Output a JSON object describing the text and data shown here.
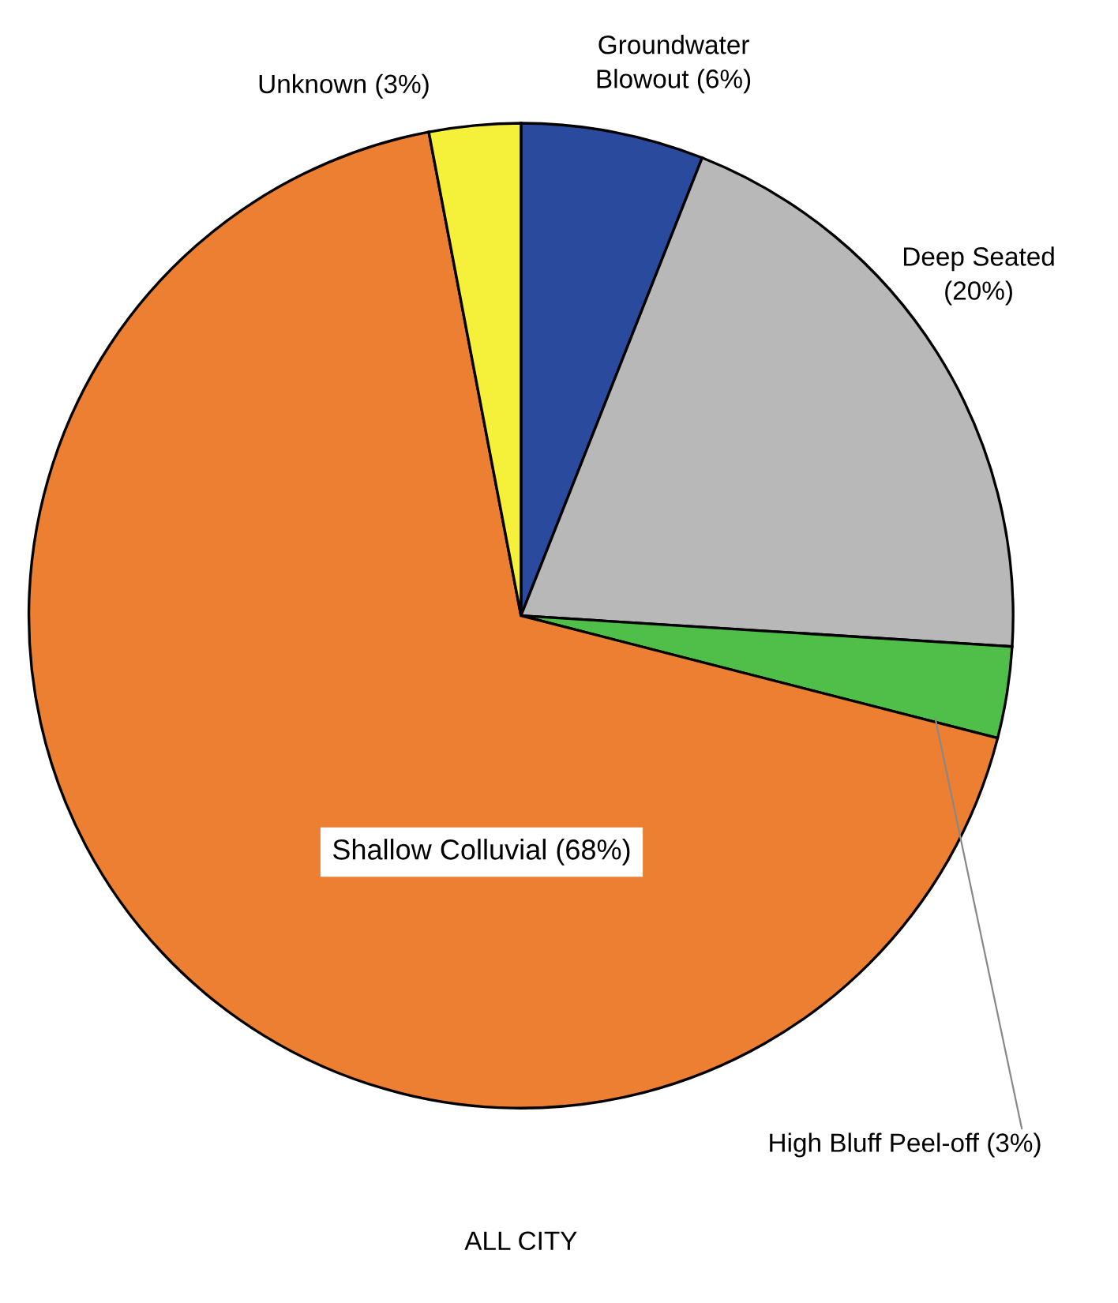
{
  "chart_data": {
    "type": "pie",
    "title": "ALL CITY",
    "categories": [
      "Groundwater\nBlowout (6%)",
      "Deep Seated\n(20%)",
      "High Bluff Peel-off (3%)",
      "Shallow Colluvial (68%)",
      "Unknown (3%)"
    ],
    "values": [
      6,
      20,
      3,
      68,
      3
    ],
    "colors": [
      "#2a4a9e",
      "#b8b8b8",
      "#4fbf4a",
      "#ec7f32",
      "#f5f03a"
    ]
  }
}
